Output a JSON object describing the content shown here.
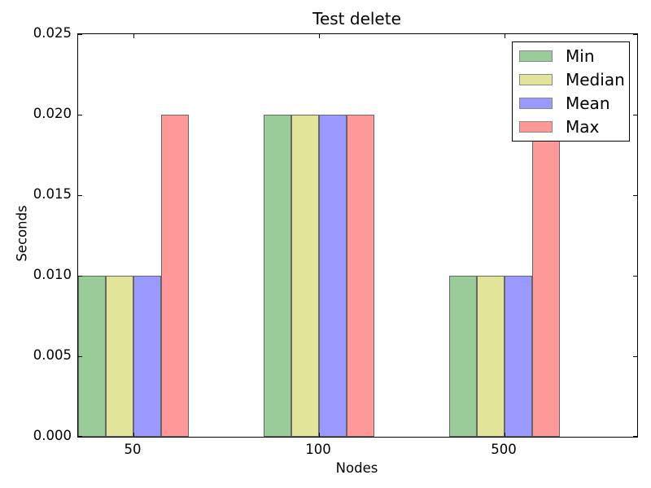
{
  "chart_data": {
    "type": "bar",
    "title": "Test delete",
    "xlabel": "Nodes",
    "ylabel": "Seconds",
    "categories": [
      "50",
      "100",
      "500"
    ],
    "series": [
      {
        "name": "Min",
        "color": "#99cc99",
        "values": [
          0.01,
          0.02,
          0.01
        ]
      },
      {
        "name": "Median",
        "color": "#e2e499",
        "values": [
          0.01,
          0.02,
          0.01
        ]
      },
      {
        "name": "Mean",
        "color": "#9999ff",
        "values": [
          0.01,
          0.02,
          0.01
        ]
      },
      {
        "name": "Max",
        "color": "#ff9999",
        "values": [
          0.02,
          0.02,
          0.02
        ]
      }
    ],
    "ylim": [
      0,
      0.025
    ],
    "yticks": [
      "0.000",
      "0.005",
      "0.010",
      "0.015",
      "0.020",
      "0.025"
    ],
    "bar_edge_color": "#666666",
    "legend_position": "upper right",
    "grid": false
  }
}
